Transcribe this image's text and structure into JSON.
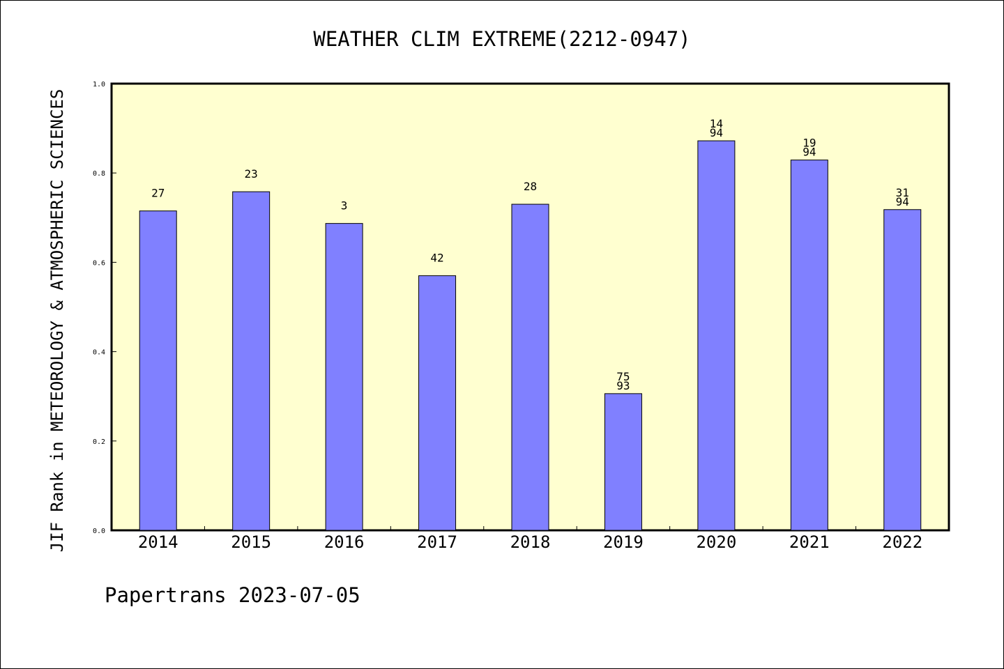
{
  "chart_data": {
    "type": "bar",
    "title": "WEATHER CLIM EXTREME(2212-0947)",
    "ylabel": "JIF Rank in METEOROLOGY & ATMOSPHERIC SCIENCES",
    "xlabel": "",
    "ylim": [
      0,
      1.0
    ],
    "yticks": [
      "0.0",
      "0.2",
      "0.4",
      "0.6",
      "0.8",
      "1.0"
    ],
    "categories": [
      "2014",
      "2015",
      "2016",
      "2017",
      "2018",
      "2019",
      "2020",
      "2021",
      "2022"
    ],
    "values": [
      0.715,
      0.758,
      0.687,
      0.57,
      0.73,
      0.306,
      0.872,
      0.829,
      0.718
    ],
    "bar_labels": [
      [
        "27"
      ],
      [
        "23"
      ],
      [
        "3"
      ],
      [
        "42"
      ],
      [
        "28"
      ],
      [
        "75",
        "93"
      ],
      [
        "14",
        "94"
      ],
      [
        "19",
        "94"
      ],
      [
        "31",
        "94"
      ]
    ],
    "grid": false,
    "colors": {
      "bar_fill": "#8080ff",
      "plot_background": "#ffffd0",
      "axis": "#000000"
    }
  },
  "footer": "Papertrans 2023-07-05"
}
